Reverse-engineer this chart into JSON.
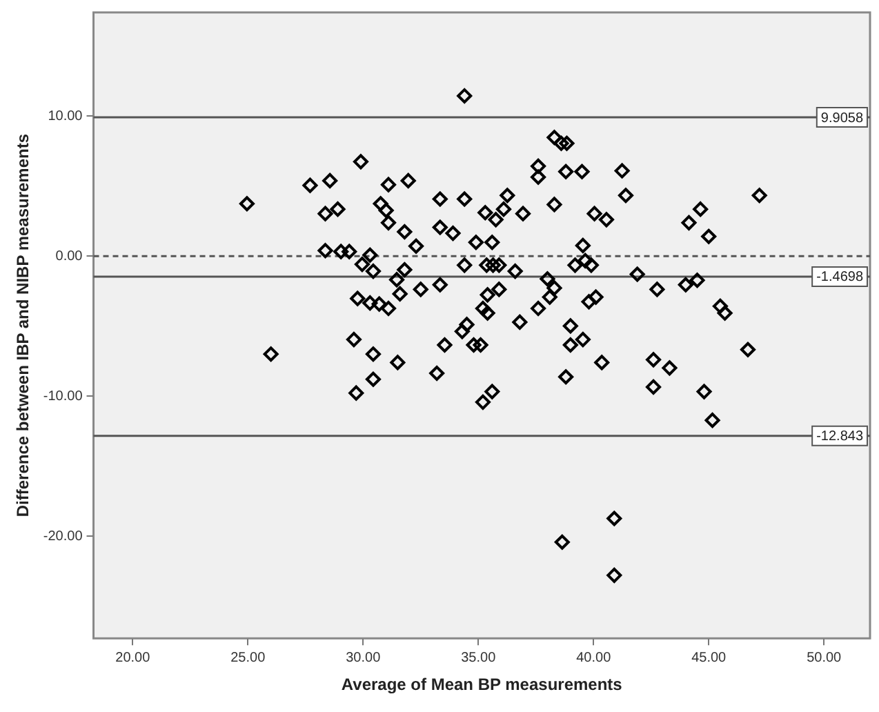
{
  "chart_data": {
    "type": "scatter",
    "xlabel": "Average of Mean BP measurements",
    "ylabel": "Difference between IBP and NIBP measurements",
    "xlim": [
      18.3,
      52
    ],
    "ylim": [
      -27.3,
      17.4
    ],
    "xticks": [
      {
        "value": 20,
        "label": "20.00"
      },
      {
        "value": 25,
        "label": "25.00"
      },
      {
        "value": 30,
        "label": "30.00"
      },
      {
        "value": 35,
        "label": "35.00"
      },
      {
        "value": 40,
        "label": "40.00"
      },
      {
        "value": 45,
        "label": "45.00"
      },
      {
        "value": 50,
        "label": "50.00"
      }
    ],
    "yticks": [
      {
        "value": -20,
        "label": "-20.00"
      },
      {
        "value": -10,
        "label": "-10.00"
      },
      {
        "value": 0,
        "label": "0.00"
      },
      {
        "value": 10,
        "label": "10.00"
      }
    ],
    "grid": false,
    "legend": false,
    "marker": "diamond",
    "ref_lines": [
      {
        "axis": "y",
        "value": 9.9058,
        "label": "9.9058",
        "color": "#555555",
        "line_style": "solid"
      },
      {
        "axis": "y",
        "value": 0,
        "color": "#555555",
        "line_style": "dashed"
      },
      {
        "axis": "y",
        "value": -1.4698,
        "label": "-1.4698",
        "color": "#555555",
        "line_style": "solid"
      },
      {
        "axis": "y",
        "value": -12.843,
        "label": "-12.843",
        "color": "#555555",
        "line_style": "solid"
      }
    ],
    "series": [
      {
        "color": "#000000",
        "x": [
          24.96,
          26.0,
          27.7,
          28.56,
          28.36,
          28.9,
          28.36,
          29.04,
          29.4,
          29.9,
          31.1,
          31.96,
          30.76,
          31.0,
          31.1,
          31.8,
          32.3,
          30.3,
          29.96,
          30.44,
          31.8,
          31.46,
          31.6,
          32.5,
          33.34,
          29.76,
          30.3,
          30.7,
          31.1,
          33.34,
          34.4,
          33.34,
          33.9,
          34.9,
          34.4,
          35.3,
          35.4,
          35.2,
          34.5,
          34.3,
          34.8,
          35.1,
          29.6,
          30.44,
          31.5,
          33.2,
          30.44,
          33.54,
          38.3,
          38.6,
          38.84,
          37.6,
          37.6,
          38.8,
          39.5,
          41.24,
          41.4,
          47.2,
          36.26,
          35.76,
          36.1,
          36.94,
          38.3,
          40.04,
          40.56,
          44.14,
          44.64,
          45.0,
          35.6,
          35.36,
          35.64,
          35.9,
          36.6,
          39.54,
          39.2,
          39.64,
          39.9,
          41.9,
          42.76,
          44.0,
          44.5,
          38.0,
          38.3,
          38.1,
          35.9,
          35.4,
          37.6,
          36.8,
          39.8,
          40.1,
          45.5,
          45.7,
          39.0,
          39.0,
          39.54,
          40.36,
          42.6,
          43.3,
          46.7,
          38.8,
          35.2,
          35.6,
          42.6,
          44.8,
          45.16,
          40.9,
          38.64,
          40.9,
          29.7,
          34.4
        ],
        "values": [
          3.74,
          -7.0,
          5.05,
          5.38,
          3.03,
          3.35,
          0.39,
          0.32,
          0.32,
          6.74,
          5.1,
          5.38,
          3.74,
          3.26,
          2.38,
          1.73,
          0.71,
          0.07,
          -0.59,
          -1.08,
          -0.98,
          -1.69,
          -2.7,
          -2.38,
          -2.05,
          -3.03,
          -3.35,
          -3.42,
          -3.74,
          4.07,
          4.07,
          2.05,
          1.63,
          0.98,
          -0.65,
          3.1,
          -2.77,
          -3.74,
          -4.89,
          -5.38,
          -6.35,
          -6.35,
          -5.96,
          -7.0,
          -7.6,
          -8.37,
          -8.8,
          -6.35,
          8.47,
          8.05,
          8.05,
          6.42,
          5.64,
          6.03,
          6.03,
          6.09,
          4.33,
          4.33,
          4.33,
          2.6,
          3.35,
          3.03,
          3.68,
          3.03,
          2.6,
          2.38,
          3.35,
          1.4,
          0.98,
          -0.65,
          -0.65,
          -0.65,
          -1.08,
          0.75,
          -0.65,
          -0.33,
          -0.65,
          -1.3,
          -2.38,
          -2.05,
          -1.73,
          -1.63,
          -2.28,
          -2.93,
          -2.38,
          -4.07,
          -3.74,
          -4.72,
          -3.26,
          -2.93,
          -3.58,
          -4.07,
          -4.99,
          -6.35,
          -5.96,
          -7.6,
          -7.4,
          -7.99,
          -6.68,
          -8.63,
          -10.43,
          -9.68,
          -9.35,
          -9.68,
          -11.73,
          -18.74,
          -20.43,
          -22.8,
          -9.78,
          11.44
        ]
      }
    ]
  }
}
